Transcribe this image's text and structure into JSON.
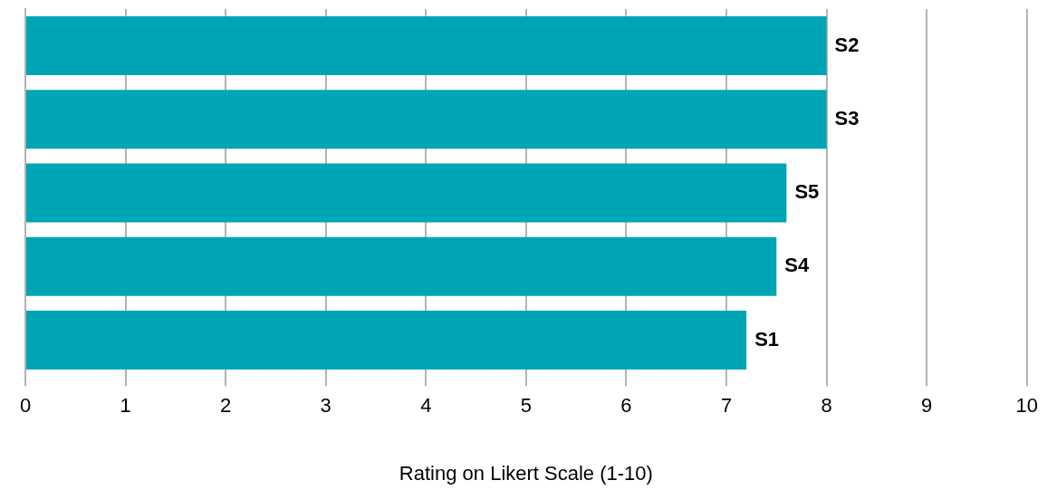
{
  "chart_data": {
    "type": "bar",
    "orientation": "horizontal",
    "categories": [
      "S2",
      "S3",
      "S5",
      "S4",
      "S1"
    ],
    "values": [
      8,
      8,
      7.6,
      7.5,
      7.2
    ],
    "color": "#00a5b5",
    "xlim": [
      0,
      10
    ],
    "xticks": [
      0,
      1,
      2,
      3,
      4,
      5,
      6,
      7,
      8,
      9,
      10
    ],
    "xlabel": "Rating on Likert Scale (1-10)",
    "grid": "x",
    "tick_labels": "x",
    "legend": false
  }
}
